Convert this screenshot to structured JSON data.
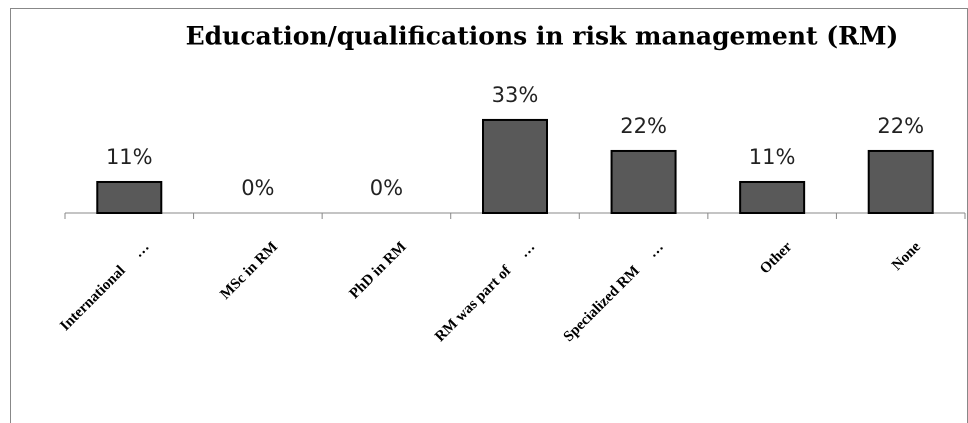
{
  "chart_data": {
    "type": "bar",
    "title": "Education/qualifications in risk management  (RM)",
    "categories": [
      "International     …",
      "MSc in RM",
      "PhD in RM",
      "RM was part of     …",
      "Specialized RM     …",
      "Other",
      "None"
    ],
    "values": [
      11,
      0,
      0,
      33,
      22,
      11,
      22
    ],
    "value_labels": [
      "11%",
      "0%",
      "0%",
      "33%",
      "22%",
      "11%",
      "22%"
    ],
    "color": "#595959"
  }
}
